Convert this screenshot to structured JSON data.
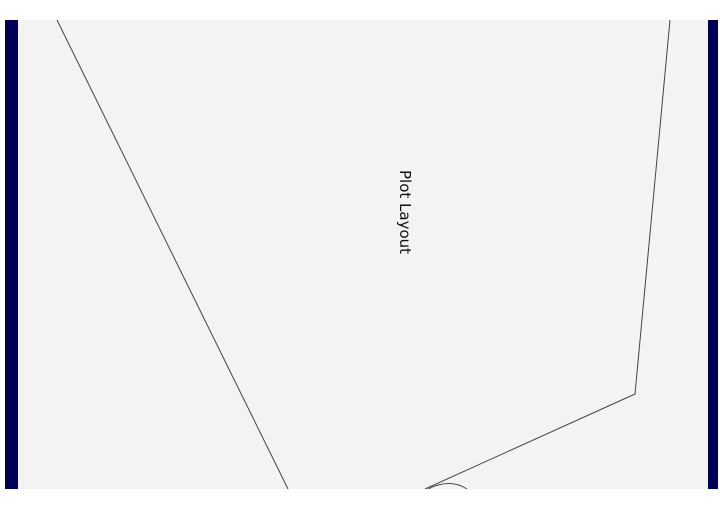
{
  "diagram": {
    "label": "Plot Layout",
    "colors": {
      "background": "#f3f3f3",
      "border": "#000057",
      "line": "#444444"
    }
  }
}
